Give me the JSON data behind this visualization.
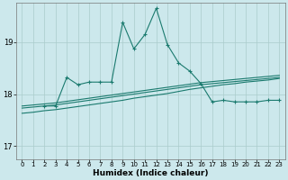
{
  "xlabel": "Humidex (Indice chaleur)",
  "background_color": "#cce8ec",
  "grid_color": "#aacccc",
  "line_color": "#1a7a6e",
  "xlim": [
    -0.5,
    23.5
  ],
  "ylim": [
    16.75,
    19.75
  ],
  "yticks": [
    17,
    18,
    19
  ],
  "xticks": [
    0,
    1,
    2,
    3,
    4,
    5,
    6,
    7,
    8,
    9,
    10,
    11,
    12,
    13,
    14,
    15,
    16,
    17,
    18,
    19,
    20,
    21,
    22,
    23
  ],
  "series": {
    "flat1_x": [
      0,
      1,
      2,
      3,
      4,
      5,
      6,
      7,
      8,
      9,
      10,
      11,
      12,
      13,
      14,
      15,
      16,
      17,
      18,
      19,
      20,
      21,
      22,
      23
    ],
    "flat1_y": [
      17.77,
      17.79,
      17.81,
      17.83,
      17.86,
      17.89,
      17.92,
      17.95,
      17.98,
      18.01,
      18.04,
      18.07,
      18.1,
      18.13,
      18.16,
      18.19,
      18.22,
      18.24,
      18.26,
      18.28,
      18.3,
      18.32,
      18.34,
      18.36
    ],
    "flat2_x": [
      0,
      1,
      2,
      3,
      4,
      5,
      6,
      7,
      8,
      9,
      10,
      11,
      12,
      13,
      14,
      15,
      16,
      17,
      18,
      19,
      20,
      21,
      22,
      23
    ],
    "flat2_y": [
      17.73,
      17.75,
      17.77,
      17.79,
      17.82,
      17.85,
      17.88,
      17.91,
      17.94,
      17.97,
      18.0,
      18.03,
      18.06,
      18.09,
      18.12,
      18.15,
      18.18,
      18.2,
      18.22,
      18.24,
      18.26,
      18.28,
      18.3,
      18.32
    ],
    "flat3_x": [
      0,
      1,
      2,
      3,
      4,
      5,
      6,
      7,
      8,
      9,
      10,
      11,
      12,
      13,
      14,
      15,
      16,
      17,
      18,
      19,
      20,
      21,
      22,
      23
    ],
    "flat3_y": [
      17.63,
      17.65,
      17.68,
      17.7,
      17.73,
      17.76,
      17.79,
      17.82,
      17.85,
      17.88,
      17.92,
      17.95,
      17.98,
      18.01,
      18.05,
      18.09,
      18.12,
      18.15,
      18.18,
      18.2,
      18.23,
      18.25,
      18.27,
      18.3
    ],
    "main_x": [
      2,
      3,
      4,
      5,
      6,
      7,
      8,
      9,
      10,
      11,
      12,
      13,
      14,
      15,
      16,
      17,
      18,
      19,
      20,
      21,
      22,
      23
    ],
    "main_y": [
      17.77,
      17.77,
      18.32,
      18.18,
      18.23,
      18.23,
      18.23,
      19.38,
      18.87,
      19.15,
      19.65,
      18.95,
      18.6,
      18.44,
      18.2,
      17.85,
      17.88,
      17.85,
      17.85,
      17.85,
      17.88,
      17.88
    ]
  }
}
